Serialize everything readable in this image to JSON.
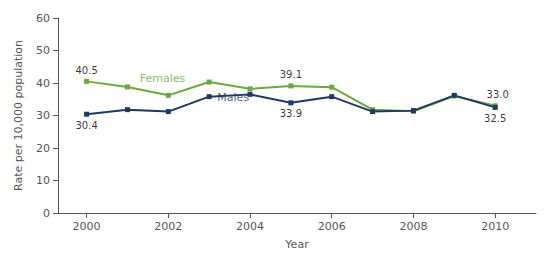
{
  "chart_data": {
    "type": "line",
    "xlabel": "Year",
    "ylabel": "Rate per 10,000 population",
    "x": [
      2000,
      2001,
      2002,
      2003,
      2004,
      2005,
      2006,
      2007,
      2008,
      2009,
      2010
    ],
    "series": [
      {
        "name": "Females",
        "color": "#6aaa3a",
        "marker": "square",
        "values": [
          40.5,
          38.8,
          36.2,
          40.3,
          38.2,
          39.1,
          38.7,
          31.8,
          31.3,
          36.0,
          33.0
        ]
      },
      {
        "name": "Males",
        "color": "#1f3864",
        "marker": "square",
        "values": [
          30.4,
          31.8,
          31.2,
          35.8,
          36.5,
          33.9,
          35.8,
          31.2,
          31.5,
          36.2,
          32.5
        ]
      }
    ],
    "xlim": [
      1999.3,
      2011.0
    ],
    "xticks": [
      2000,
      2002,
      2004,
      2006,
      2008,
      2010
    ],
    "ylim": [
      0,
      60
    ],
    "yticks": [
      0,
      10,
      20,
      30,
      40,
      50,
      60
    ],
    "grid": false,
    "annotations": [
      {
        "text": "40.5",
        "x": 2000,
        "y": 40.5
      },
      {
        "text": "39.1",
        "x": 2005,
        "y": 39.1
      },
      {
        "text": " 33.0",
        "x": 2010,
        "y": 33.0
      },
      {
        "text": "30.4",
        "x": 2000,
        "y": 30.4
      },
      {
        "text": "33.9",
        "x": 2005,
        "y": 33.9
      },
      {
        "text": "32.5",
        "x": 2010,
        "y": 32.5
      },
      {
        "text": "Females",
        "x": 2001.3,
        "y": 39.8
      },
      {
        "text": "Males",
        "x": 2003.2,
        "y": 34.0
      }
    ]
  }
}
